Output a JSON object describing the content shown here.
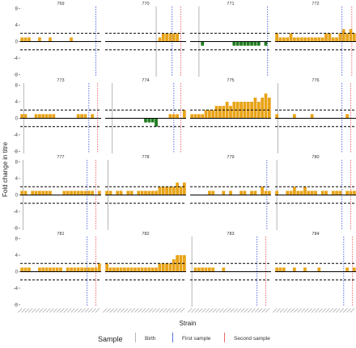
{
  "chart_data": {
    "type": "bar",
    "ylabel": "Fold change in titre",
    "xlabel": "Strain",
    "yticks": [
      -8,
      -4,
      0,
      4,
      8
    ],
    "ylim": [
      -8.5,
      8.5
    ],
    "reference_lines_y": [
      2,
      -2
    ],
    "n_strains": 23,
    "colors": {
      "positive": "#e8a317",
      "negative": "#1e7b1e",
      "birth": "#b5b5b5",
      "first": "#5a6fe0",
      "second": "#ef6a6a"
    },
    "legend": {
      "title": "Sample",
      "entries": [
        {
          "label": "Birth",
          "color": "#b5b5b5"
        },
        {
          "label": "First sample",
          "color": "#5a6fe0"
        },
        {
          "label": "Second sample",
          "color": "#ef6a6a"
        }
      ]
    },
    "panels": [
      {
        "id": "769",
        "birth": null,
        "first": 21.5,
        "second": null,
        "values": [
          1,
          1,
          1,
          0,
          0,
          1,
          0,
          0,
          1,
          0,
          0,
          0,
          0,
          0,
          1,
          0,
          0,
          0,
          0,
          0,
          0,
          0,
          0
        ]
      },
      {
        "id": "770",
        "birth": 14.5,
        "first": 19.0,
        "second": 21.5,
        "values": [
          0,
          0,
          0,
          0,
          0,
          0,
          0,
          0,
          0,
          0,
          0,
          0,
          0,
          0,
          0,
          1,
          2,
          2,
          2,
          2,
          2,
          0,
          0
        ]
      },
      {
        "id": "771",
        "birth": 2.5,
        "first": 22.0,
        "second": null,
        "values": [
          0,
          0,
          0,
          -1,
          0,
          0,
          0,
          0,
          0,
          0,
          0,
          0,
          -1,
          -1,
          -1,
          -1,
          -1,
          -1,
          -1,
          -1,
          0,
          -1,
          0
        ]
      },
      {
        "id": "772",
        "birth": null,
        "first": 19.0,
        "second": 21.8,
        "values": [
          2,
          1,
          1,
          1,
          2,
          1,
          1,
          1,
          1,
          1,
          1,
          1,
          1,
          1,
          2,
          2,
          1,
          1,
          2,
          3,
          2,
          3,
          2
        ]
      },
      {
        "id": "773",
        "birth": 1.0,
        "first": 19.5,
        "second": 22.0,
        "values": [
          1,
          1,
          0,
          0,
          1,
          1,
          1,
          1,
          1,
          1,
          0,
          0,
          0,
          0,
          0,
          0,
          1,
          1,
          1,
          0,
          1,
          0,
          0
        ]
      },
      {
        "id": "774",
        "birth": 2.0,
        "first": 19.5,
        "second": 21.5,
        "values": [
          0,
          0,
          0,
          0,
          0,
          0,
          0,
          0,
          0,
          0,
          0,
          -1,
          -1,
          -1,
          -2,
          0,
          0,
          0,
          1,
          1,
          1,
          0,
          2
        ]
      },
      {
        "id": "775",
        "birth": null,
        "first": null,
        "second": null,
        "values": [
          1,
          1,
          1,
          1,
          2,
          2,
          2,
          3,
          3,
          3,
          4,
          3,
          4,
          4,
          4,
          4,
          4,
          4,
          5,
          4,
          5,
          6,
          5
        ]
      },
      {
        "id": "776",
        "birth": 0.8,
        "first": 19.0,
        "second": 21.5,
        "values": [
          1,
          0,
          0,
          0,
          0,
          1,
          0,
          0,
          0,
          0,
          1,
          0,
          0,
          0,
          0,
          0,
          0,
          0,
          0,
          0,
          1,
          0,
          0
        ]
      },
      {
        "id": "777",
        "birth": 0.8,
        "first": 19.0,
        "second": 21.5,
        "values": [
          1,
          1,
          0,
          1,
          1,
          1,
          1,
          1,
          1,
          0,
          0,
          0,
          1,
          1,
          1,
          1,
          1,
          1,
          1,
          1,
          1,
          0,
          1
        ]
      },
      {
        "id": "778",
        "birth": 0.8,
        "first": null,
        "second": null,
        "values": [
          1,
          1,
          0,
          1,
          1,
          0,
          1,
          1,
          0,
          1,
          1,
          1,
          1,
          1,
          1,
          2,
          2,
          2,
          2,
          2,
          3,
          2,
          3
        ]
      },
      {
        "id": "779",
        "birth": null,
        "first": 21.8,
        "second": null,
        "values": [
          0,
          0,
          0,
          0,
          0,
          1,
          1,
          0,
          0,
          1,
          0,
          1,
          0,
          0,
          1,
          1,
          0,
          1,
          1,
          0,
          2,
          1,
          1
        ]
      },
      {
        "id": "780",
        "birth": 0.5,
        "first": 19.0,
        "second": 21.5,
        "values": [
          1,
          0,
          0,
          1,
          1,
          2,
          1,
          1,
          2,
          1,
          1,
          1,
          0,
          1,
          1,
          0,
          1,
          1,
          1,
          0,
          1,
          1,
          1
        ]
      },
      {
        "id": "781",
        "birth": null,
        "first": 19.0,
        "second": 21.5,
        "values": [
          1,
          1,
          1,
          0,
          0,
          1,
          1,
          1,
          1,
          1,
          1,
          1,
          0,
          1,
          1,
          1,
          1,
          1,
          1,
          1,
          1,
          1,
          2
        ]
      },
      {
        "id": "782",
        "birth": null,
        "first": null,
        "second": null,
        "values": [
          2,
          1,
          1,
          1,
          1,
          1,
          1,
          1,
          1,
          1,
          1,
          1,
          1,
          1,
          1,
          2,
          2,
          2,
          2,
          3,
          4,
          4,
          4
        ]
      },
      {
        "id": "783",
        "birth": 0.5,
        "first": 19.0,
        "second": 21.5,
        "values": [
          0,
          1,
          1,
          1,
          1,
          1,
          1,
          0,
          0,
          1,
          0,
          0,
          0,
          0,
          0,
          0,
          0,
          0,
          0,
          0,
          0,
          0,
          0
        ]
      },
      {
        "id": "784",
        "birth": null,
        "first": 19.5,
        "second": 22.0,
        "values": [
          1,
          1,
          1,
          0,
          0,
          1,
          0,
          0,
          1,
          0,
          0,
          0,
          1,
          0,
          0,
          0,
          0,
          0,
          0,
          0,
          1,
          0,
          1
        ]
      }
    ]
  }
}
